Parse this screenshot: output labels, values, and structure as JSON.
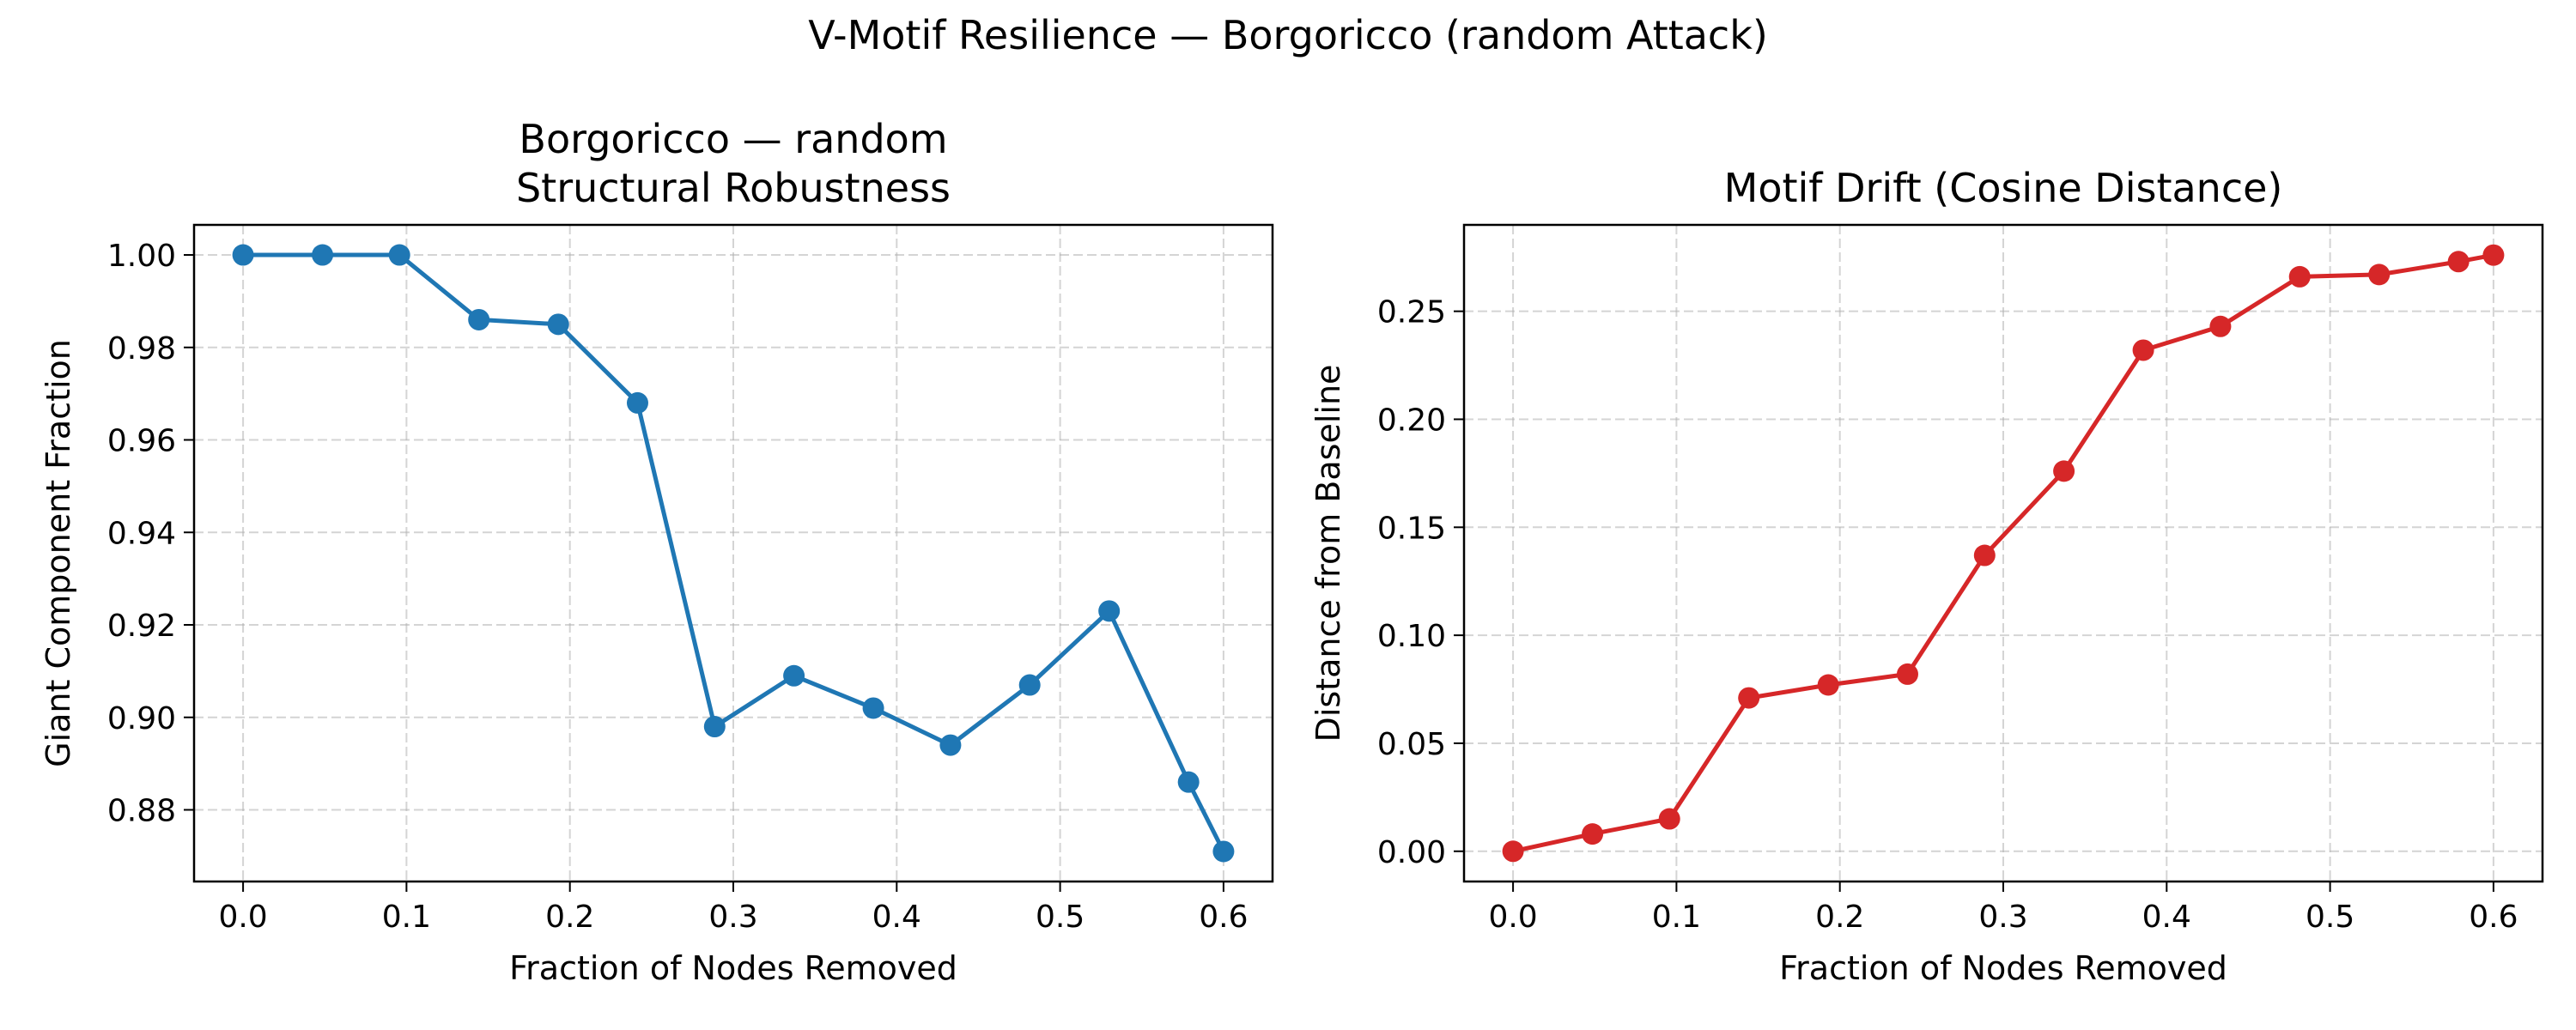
{
  "figure": {
    "suptitle": "V-Motif Resilience — Borgoricco (random Attack)"
  },
  "chart_data": [
    {
      "type": "line",
      "title": "Borgoricco — random\nStructural Robustness",
      "xlabel": "Fraction of Nodes Removed",
      "ylabel": "Giant Component Fraction",
      "xlim": [
        -0.03,
        0.63
      ],
      "ylim": [
        0.8645,
        1.0065
      ],
      "xticks": [
        "0.0",
        "0.1",
        "0.2",
        "0.3",
        "0.4",
        "0.5",
        "0.6"
      ],
      "yticks": [
        "0.88",
        "0.90",
        "0.92",
        "0.94",
        "0.96",
        "0.98",
        "1.00"
      ],
      "grid": true,
      "color": "#1f77b4",
      "series": [
        {
          "x": [
            0.0,
            0.0486,
            0.0957,
            0.1443,
            0.1929,
            0.2414,
            0.2886,
            0.3371,
            0.3857,
            0.4329,
            0.4814,
            0.53,
            0.5786,
            0.6
          ],
          "y": [
            1.0,
            1.0,
            1.0,
            0.986,
            0.985,
            0.968,
            0.898,
            0.909,
            0.902,
            0.894,
            0.907,
            0.923,
            0.886,
            0.871
          ]
        }
      ]
    },
    {
      "type": "line",
      "title": "Motif Drift (Cosine Distance)",
      "xlabel": "Fraction of Nodes Removed",
      "ylabel": "Distance from Baseline",
      "xlim": [
        -0.03,
        0.63
      ],
      "ylim": [
        -0.014,
        0.29
      ],
      "xticks": [
        "0.0",
        "0.1",
        "0.2",
        "0.3",
        "0.4",
        "0.5",
        "0.6"
      ],
      "yticks": [
        "0.00",
        "0.05",
        "0.10",
        "0.15",
        "0.20",
        "0.25"
      ],
      "grid": true,
      "color": "#d62728",
      "series": [
        {
          "x": [
            0.0,
            0.0486,
            0.0957,
            0.1443,
            0.1929,
            0.2414,
            0.2886,
            0.3371,
            0.3857,
            0.4329,
            0.4814,
            0.53,
            0.5786,
            0.6
          ],
          "y": [
            0.0,
            0.008,
            0.015,
            0.071,
            0.077,
            0.082,
            0.137,
            0.176,
            0.232,
            0.243,
            0.266,
            0.267,
            0.273,
            0.276
          ]
        }
      ]
    }
  ]
}
